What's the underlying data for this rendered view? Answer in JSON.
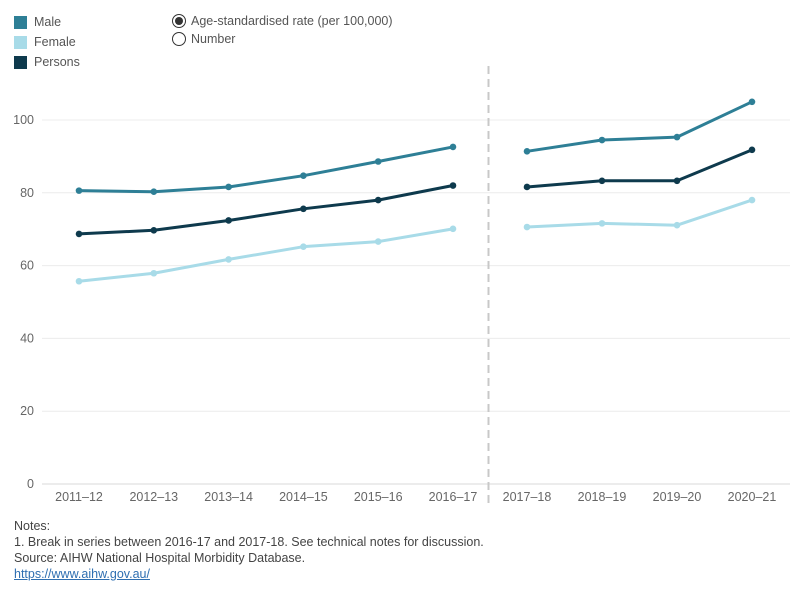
{
  "legend": [
    {
      "label": "Male",
      "color": "#2e7f96"
    },
    {
      "label": "Female",
      "color": "#a8dbe8"
    },
    {
      "label": "Persons",
      "color": "#0e3a4d"
    }
  ],
  "toggle": {
    "options": [
      {
        "label": "Age-standardised rate (per 100,000)",
        "selected": true
      },
      {
        "label": "Number",
        "selected": false
      }
    ]
  },
  "notes": {
    "heading": "Notes:",
    "line1": "1. Break in series between 2016-17 and 2017-18. See technical notes for discussion.",
    "source": "Source: AIHW National Hospital Morbidity Database.",
    "link": "https://www.aihw.gov.au/"
  },
  "chart_data": {
    "type": "line",
    "categories": [
      "2011–12",
      "2012–13",
      "2013–14",
      "2014–15",
      "2015–16",
      "2016–17",
      "2017–18",
      "2018–19",
      "2019–20",
      "2020–21"
    ],
    "series_break_after_index": 5,
    "series": [
      {
        "name": "Male",
        "color": "#2e7f96",
        "values": [
          80.6,
          80.3,
          81.6,
          84.7,
          88.6,
          92.6,
          91.4,
          94.5,
          95.3,
          105.0
        ]
      },
      {
        "name": "Female",
        "color": "#a8dbe8",
        "values": [
          55.7,
          57.9,
          61.7,
          65.2,
          66.6,
          70.1,
          70.6,
          71.6,
          71.1,
          78.0
        ]
      },
      {
        "name": "Persons",
        "color": "#0e3a4d",
        "values": [
          68.7,
          69.7,
          72.4,
          75.6,
          78.0,
          82.0,
          81.6,
          83.3,
          83.3,
          91.8
        ]
      }
    ],
    "yticks": [
      0,
      20,
      40,
      60,
      80,
      100
    ],
    "ylim": [
      0,
      110
    ],
    "grid": true
  }
}
